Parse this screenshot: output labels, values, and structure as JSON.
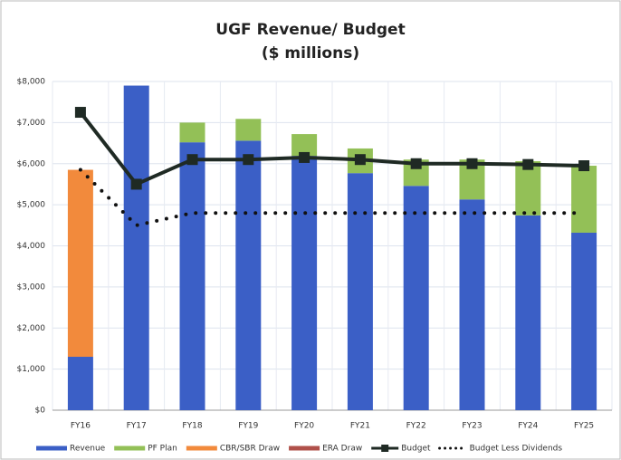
{
  "chart_data": {
    "type": "bar",
    "title": "UGF Revenue/ Budget",
    "subtitle": "($ millions)",
    "categories": [
      "FY16",
      "FY17",
      "FY18",
      "FY19",
      "FY20",
      "FY21",
      "FY22",
      "FY23",
      "FY24",
      "FY25"
    ],
    "series": [
      {
        "name": "Revenue",
        "color": "#3b5fc6",
        "values": [
          1300,
          7900,
          6520,
          6560,
          6190,
          5770,
          5460,
          5130,
          4740,
          4320
        ]
      },
      {
        "name": "PF Plan",
        "color": "#93c057",
        "values": [
          0,
          0,
          480,
          530,
          530,
          600,
          640,
          970,
          1320,
          1630
        ]
      },
      {
        "name": "CBR/SBR Draw",
        "color": "#f28a3c",
        "values": [
          4550,
          0,
          0,
          0,
          0,
          0,
          0,
          0,
          0,
          0
        ]
      },
      {
        "name": "ERA Draw",
        "color": "#b0504a",
        "values": [
          0,
          0,
          0,
          0,
          0,
          0,
          0,
          0,
          0,
          0
        ]
      },
      {
        "name": "Budget",
        "color": "#1f2a24",
        "type": "line",
        "marker": "square",
        "style": "solid",
        "values": [
          7250,
          5500,
          6100,
          6100,
          6150,
          6100,
          6000,
          6000,
          5980,
          5950
        ]
      },
      {
        "name": "Budget Less Dividends",
        "color": "#111111",
        "type": "line",
        "style": "dotted",
        "values": [
          5850,
          4500,
          4800,
          4800,
          4800,
          4800,
          4800,
          4800,
          4800,
          4800
        ]
      }
    ],
    "ylim": [
      0,
      8000
    ],
    "yticks": [
      {
        "value": 0,
        "label": "$0"
      },
      {
        "value": 1000,
        "label": "$1,000"
      },
      {
        "value": 2000,
        "label": "$2,000"
      },
      {
        "value": 3000,
        "label": "$3,000"
      },
      {
        "value": 4000,
        "label": "$4,000"
      },
      {
        "value": 5000,
        "label": "$5,000"
      },
      {
        "value": 6000,
        "label": "$6,000"
      },
      {
        "value": 7000,
        "label": "$7,000"
      },
      {
        "value": 8000,
        "label": "$8,000"
      }
    ],
    "grid": true,
    "legend": "bottom"
  }
}
